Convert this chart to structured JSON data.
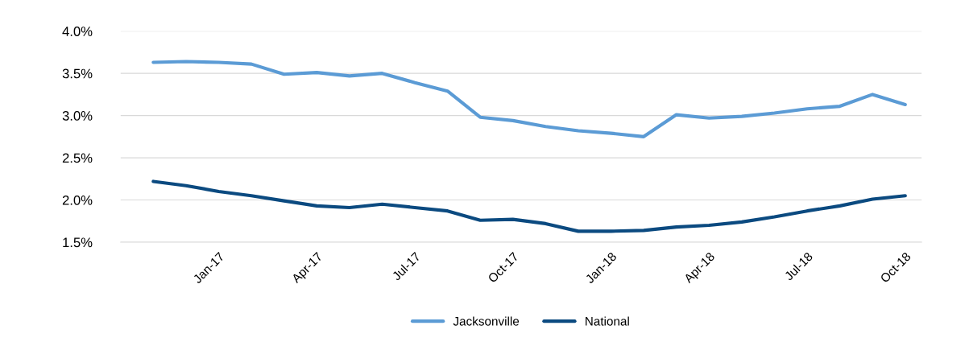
{
  "chart_data": {
    "type": "line",
    "categories": [
      null,
      null,
      "Jan-17",
      null,
      null,
      "Apr-17",
      null,
      null,
      "Jul-17",
      null,
      null,
      "Oct-17",
      null,
      null,
      "Jan-18",
      null,
      null,
      "Apr-18",
      null,
      null,
      "Jul-18",
      null,
      null,
      "Oct-18"
    ],
    "series": [
      {
        "name": "Jacksonville",
        "color": "#5b9bd5",
        "values": [
          3.63,
          3.64,
          3.63,
          3.61,
          3.49,
          3.51,
          3.47,
          3.5,
          3.39,
          3.29,
          2.98,
          2.94,
          2.87,
          2.82,
          2.79,
          2.75,
          3.01,
          2.97,
          2.99,
          3.03,
          3.08,
          3.11,
          3.25,
          3.13
        ]
      },
      {
        "name": "National",
        "color": "#0b4a80",
        "values": [
          2.22,
          2.17,
          2.1,
          2.05,
          1.99,
          1.93,
          1.91,
          1.95,
          1.91,
          1.87,
          1.76,
          1.77,
          1.72,
          1.63,
          1.63,
          1.64,
          1.68,
          1.7,
          1.74,
          1.8,
          1.87,
          1.93,
          2.01,
          2.05
        ]
      }
    ],
    "ylim": [
      1.5,
      4.0
    ],
    "yticks": [
      {
        "value": 1.5,
        "label": "1.5%"
      },
      {
        "value": 2.0,
        "label": "2.0%"
      },
      {
        "value": 2.5,
        "label": "2.5%"
      },
      {
        "value": 3.0,
        "label": "3.0%"
      },
      {
        "value": 3.5,
        "label": "3.5%"
      },
      {
        "value": 4.0,
        "label": "4.0%"
      }
    ],
    "grid": "y",
    "legend": "bottom",
    "marker": "none",
    "line_style": "solid"
  }
}
